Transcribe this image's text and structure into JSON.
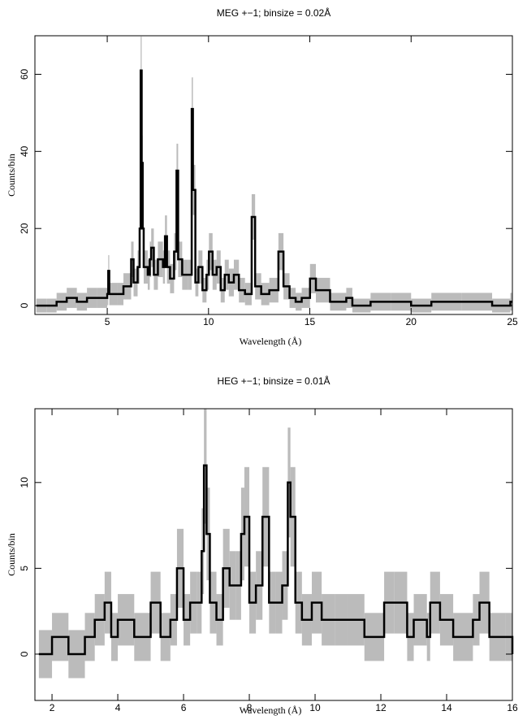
{
  "chart_data": [
    {
      "type": "step",
      "title": "MEG +−1; binsize = 0.02Å",
      "x_label": "Wavelength (Å)",
      "y_label": "Counts/bin",
      "xlim": [
        1.43,
        25
      ],
      "ylim": [
        -2.3,
        70
      ],
      "xticks": [
        5,
        10,
        15,
        20,
        25
      ],
      "yticks": [
        0,
        20,
        40,
        60
      ],
      "series": [
        {
          "color": "#000000",
          "error_color": "#bbbbbb",
          "x": [
            1.5,
            2.0,
            2.5,
            3.0,
            3.5,
            4.0,
            4.5,
            5.0,
            5.05,
            5.1,
            5.5,
            5.8,
            6.0,
            6.18,
            6.3,
            6.5,
            6.6,
            6.65,
            6.7,
            6.75,
            6.8,
            7.0,
            7.1,
            7.17,
            7.3,
            7.5,
            7.75,
            7.85,
            7.95,
            8.1,
            8.3,
            8.42,
            8.5,
            8.7,
            9.0,
            9.17,
            9.23,
            9.35,
            9.5,
            9.7,
            9.9,
            10.02,
            10.2,
            10.4,
            10.6,
            10.8,
            11.0,
            11.25,
            11.5,
            11.8,
            12.13,
            12.3,
            12.6,
            13.0,
            13.45,
            13.7,
            14.0,
            14.3,
            14.6,
            15.01,
            15.3,
            16.0,
            16.8,
            17.1,
            18.0,
            19.0,
            20.0,
            21.0,
            22.5,
            24.0,
            24.9
          ],
          "values": [
            0,
            0,
            1,
            2,
            1,
            2,
            2,
            3,
            9,
            3,
            3,
            5,
            5,
            12,
            6,
            10,
            20,
            61,
            37,
            20,
            10,
            8,
            12,
            15,
            8,
            12,
            10,
            18,
            10,
            7,
            14,
            35,
            12,
            8,
            8,
            51,
            30,
            6,
            10,
            4,
            8,
            14,
            8,
            10,
            4,
            8,
            6,
            8,
            4,
            3,
            23,
            5,
            3,
            4,
            14,
            5,
            2,
            1,
            2,
            7,
            4,
            1,
            2,
            0,
            1,
            1,
            0,
            1,
            1,
            0,
            1
          ],
          "errors": [
            1.8,
            1.8,
            2.3,
            2.6,
            2.3,
            2.6,
            2.6,
            2.9,
            4.1,
            2.9,
            2.9,
            3.4,
            3.4,
            4.6,
            3.6,
            4.3,
            5.6,
            8.8,
            7.1,
            5.6,
            4.3,
            3.9,
            4.6,
            5.0,
            3.9,
            4.6,
            4.3,
            5.4,
            4.3,
            3.8,
            4.8,
            7.0,
            4.6,
            3.9,
            3.9,
            8.2,
            6.5,
            3.6,
            4.3,
            3.2,
            3.9,
            4.8,
            3.9,
            4.3,
            3.2,
            3.9,
            3.6,
            3.9,
            3.2,
            2.9,
            5.9,
            3.4,
            2.9,
            3.2,
            4.8,
            3.4,
            2.6,
            2.3,
            2.6,
            3.8,
            3.2,
            2.3,
            2.6,
            1.8,
            2.3,
            2.3,
            1.8,
            2.3,
            2.3,
            1.8,
            2.3
          ]
        }
      ]
    },
    {
      "type": "step",
      "title": "HEG +−1; binsize = 0.01Å",
      "x_label": "Wavelength (Å)",
      "y_label": "Counts/bin",
      "xlim": [
        1.48,
        16
      ],
      "ylim": [
        -2.7,
        14.3
      ],
      "xticks": [
        2,
        4,
        6,
        8,
        10,
        12,
        14,
        16
      ],
      "yticks": [
        0,
        5,
        10
      ],
      "series": [
        {
          "color": "#000000",
          "error_color": "#bbbbbb",
          "x": [
            1.6,
            2.0,
            2.5,
            3.0,
            3.3,
            3.6,
            3.8,
            4.0,
            4.5,
            5.0,
            5.3,
            5.6,
            5.8,
            6.0,
            6.2,
            6.4,
            6.55,
            6.62,
            6.7,
            6.8,
            7.0,
            7.2,
            7.4,
            7.6,
            7.75,
            7.85,
            8.0,
            8.2,
            8.4,
            8.6,
            8.8,
            9.0,
            9.17,
            9.25,
            9.4,
            9.6,
            9.9,
            10.2,
            10.6,
            11.0,
            11.5,
            12.1,
            12.4,
            12.8,
            13.0,
            13.4,
            13.5,
            13.8,
            14.2,
            14.8,
            15.0,
            15.3,
            15.8,
            16.0
          ],
          "values": [
            0,
            1,
            0,
            1,
            2,
            3,
            1,
            2,
            1,
            3,
            1,
            2,
            5,
            2,
            3,
            3,
            6,
            11,
            7,
            3,
            2,
            5,
            4,
            4,
            7,
            8,
            3,
            4,
            8,
            3,
            3,
            4,
            10,
            8,
            3,
            2,
            3,
            2,
            2,
            2,
            1,
            3,
            3,
            1,
            2,
            1,
            3,
            2,
            1,
            2,
            3,
            1,
            1,
            0
          ],
          "errors": [
            1.4,
            1.4,
            1.4,
            1.4,
            1.5,
            1.8,
            1.4,
            1.5,
            1.4,
            1.8,
            1.4,
            1.5,
            2.3,
            1.5,
            1.8,
            1.8,
            2.5,
            3.4,
            2.7,
            1.8,
            1.5,
            2.3,
            2.0,
            2.0,
            2.7,
            2.9,
            1.8,
            2.0,
            2.9,
            1.8,
            1.8,
            2.0,
            3.2,
            2.9,
            1.8,
            1.5,
            1.8,
            1.5,
            1.5,
            1.5,
            1.4,
            1.8,
            1.8,
            1.4,
            1.5,
            1.4,
            1.8,
            1.5,
            1.4,
            1.5,
            1.8,
            1.4,
            1.4,
            1.4
          ]
        }
      ]
    }
  ]
}
